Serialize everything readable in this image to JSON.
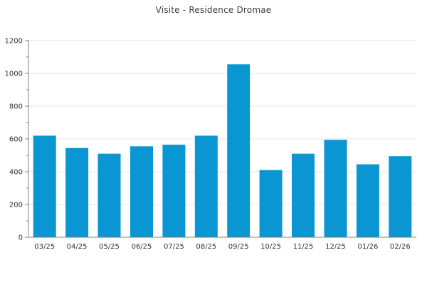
{
  "chart_data": {
    "type": "bar",
    "title": "Visite - Residence Dromae",
    "categories": [
      "03/25",
      "04/25",
      "05/25",
      "06/25",
      "07/25",
      "08/25",
      "09/25",
      "10/25",
      "11/25",
      "12/25",
      "01/26",
      "02/26"
    ],
    "values": [
      620,
      545,
      510,
      555,
      565,
      620,
      1055,
      410,
      510,
      595,
      445,
      495
    ],
    "xlabel": "",
    "ylabel": "",
    "ylim": [
      0,
      1200
    ],
    "ytick_step": 200,
    "ytick_labels": [
      "0",
      "200",
      "400",
      "600",
      "800",
      "1000",
      "1200"
    ],
    "yminor_step": 100,
    "grid": "horizontal-major",
    "legend": "none",
    "colors": {
      "bar": "#0a96d2",
      "axis": "#808080",
      "grid": "#e6e6e6",
      "tick_label": "#333333",
      "title": "#3c3c3c",
      "background": "#ffffff"
    }
  }
}
